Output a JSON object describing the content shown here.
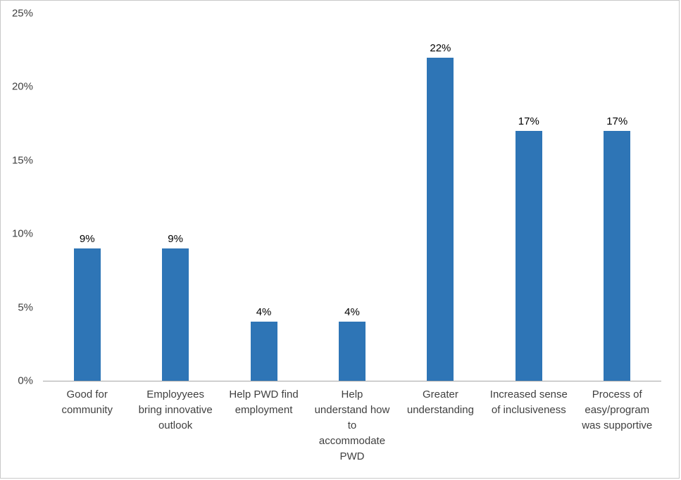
{
  "chart_data": {
    "type": "bar",
    "title": "",
    "xlabel": "",
    "ylabel": "",
    "categories": [
      "Good for community",
      "Employyees bring innovative outlook",
      "Help PWD find employment",
      "Help understand how to accommodate PWD",
      "Greater understanding",
      "Increased sense of inclusiveness",
      "Process of easy/program was supportive"
    ],
    "category_lines": [
      [
        "Good for",
        "community"
      ],
      [
        "Employyees",
        "bring innovative",
        "outlook"
      ],
      [
        "Help PWD find",
        "employment"
      ],
      [
        "Help",
        "understand how",
        "to",
        "accommodate",
        "PWD"
      ],
      [
        "Greater",
        "understanding"
      ],
      [
        "Increased sense",
        "of inclusiveness"
      ],
      [
        "Process of",
        "easy/program",
        "was supportive"
      ]
    ],
    "values": [
      9,
      9,
      4,
      4,
      22,
      17,
      17
    ],
    "data_labels": [
      "9%",
      "9%",
      "4%",
      "4%",
      "22%",
      "17%",
      "17%"
    ],
    "ylim": [
      0,
      25
    ],
    "ytick_step": 5,
    "ytick_labels": [
      "0%",
      "5%",
      "10%",
      "15%",
      "20%",
      "25%"
    ],
    "grid": false,
    "legend": false,
    "bar_color": "#2E75B6",
    "axis_line_color": "#a6a6a6",
    "frame_border_color": "#c9c9c9",
    "tick_label_color": "#404040",
    "data_label_color": "#000000"
  }
}
